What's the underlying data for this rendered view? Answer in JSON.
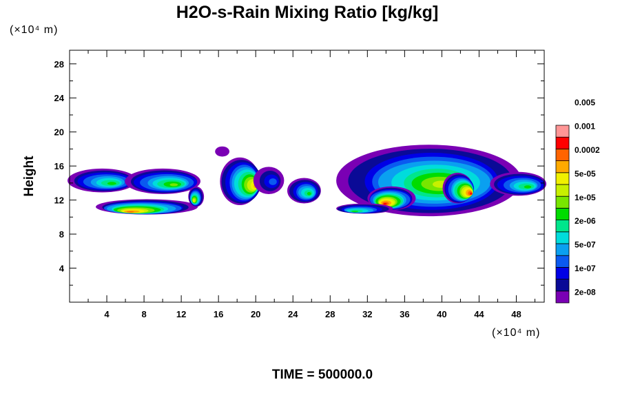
{
  "chart_data": {
    "type": "heatmap",
    "title": "H2O-s-Rain Mixing Ratio [kg/kg]",
    "xlabel": "",
    "ylabel": "Height",
    "x_unit": "(×10⁴ m)",
    "y_unit": "(×10⁴ m)",
    "footer": "TIME = 500000.0",
    "xlim": [
      0,
      51
    ],
    "ylim": [
      0,
      29.6
    ],
    "x_ticks": [
      4,
      8,
      12,
      16,
      20,
      24,
      28,
      32,
      36,
      40,
      44,
      48
    ],
    "y_ticks": [
      4,
      8,
      12,
      16,
      20,
      24,
      28
    ],
    "x_tick_labels": [
      "4",
      "8",
      "12",
      "16",
      "20",
      "24",
      "28",
      "32",
      "36",
      "40",
      "44",
      "48"
    ],
    "y_tick_labels": [
      "4",
      "8",
      "12",
      "16",
      "20",
      "24",
      "28"
    ],
    "colorbar": {
      "colors": [
        "#7a00b4",
        "#0a0a96",
        "#0000e6",
        "#0a5af0",
        "#0aa0f0",
        "#00dcdc",
        "#00e68c",
        "#00dc00",
        "#78e600",
        "#c8f000",
        "#f0f000",
        "#ffaa00",
        "#ff6400",
        "#ff0000",
        "#ff9696"
      ],
      "labels": [
        "2e-08",
        "1e-07",
        "5e-07",
        "2e-06",
        "1e-05",
        "5e-05",
        "0.0002",
        "0.001",
        "0.005"
      ]
    },
    "regions": [
      {
        "name": "left-upper-band",
        "cx": 3.5,
        "cy": 14.3,
        "rx": 3.8,
        "ry": 1.4,
        "peak": 7
      },
      {
        "name": "left-upper-band-2",
        "cx": 10,
        "cy": 14.2,
        "rx": 4.2,
        "ry": 1.5,
        "peak": 8
      },
      {
        "name": "left-lower-band",
        "cx": 8.3,
        "cy": 11.2,
        "rx": 5.2,
        "ry": 0.9,
        "peak": 12
      },
      {
        "name": "left-small-cell",
        "cx": 13.6,
        "cy": 12.4,
        "rx": 0.8,
        "ry": 1.2,
        "peak": 10
      },
      {
        "name": "cell-18",
        "cx": 18.3,
        "cy": 14.2,
        "rx": 2.2,
        "ry": 2.8,
        "peak": 11
      },
      {
        "name": "cell-21",
        "cx": 21.4,
        "cy": 14.3,
        "rx": 1.6,
        "ry": 1.6,
        "peak": 3
      },
      {
        "name": "cell-16-top",
        "cx": 16.4,
        "cy": 17.7,
        "rx": 0.8,
        "ry": 0.6,
        "peak": 0
      },
      {
        "name": "cell-25",
        "cx": 25.2,
        "cy": 13.1,
        "rx": 1.8,
        "ry": 1.5,
        "peak": 7
      },
      {
        "name": "right-complex",
        "cx": 38.6,
        "cy": 14.3,
        "rx": 9.5,
        "ry": 4.2,
        "peak": 9
      },
      {
        "name": "right-core-35",
        "cx": 34.6,
        "cy": 12.2,
        "rx": 2.6,
        "ry": 1.4,
        "peak": 13
      },
      {
        "name": "right-core-42",
        "cx": 41.7,
        "cy": 13.4,
        "rx": 1.7,
        "ry": 1.8,
        "peak": 13
      },
      {
        "name": "right-lower-band",
        "cx": 31.7,
        "cy": 11.0,
        "rx": 3.0,
        "ry": 0.6,
        "peak": 7
      },
      {
        "name": "right-edge-band",
        "cx": 48.2,
        "cy": 13.9,
        "rx": 3.2,
        "ry": 1.4,
        "peak": 7
      }
    ]
  }
}
